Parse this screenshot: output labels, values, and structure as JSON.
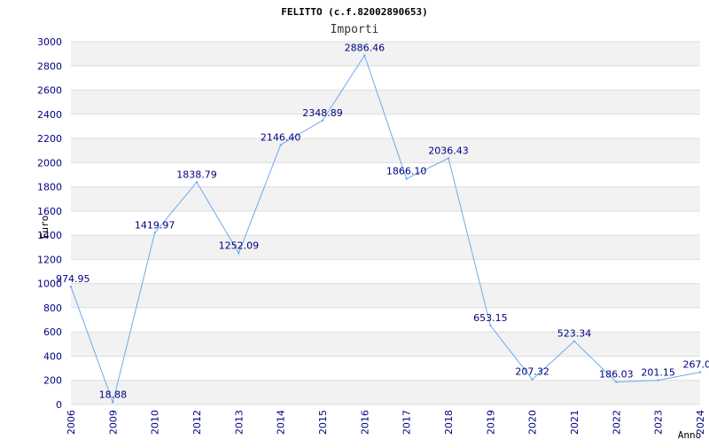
{
  "chart_data": {
    "type": "line",
    "title": "FELITTO (c.f.82002890653)",
    "subtitle": "Importi",
    "xlabel": "Anno",
    "ylabel": "Euro",
    "categories": [
      "2006",
      "2009",
      "2010",
      "2012",
      "2013",
      "2014",
      "2015",
      "2016",
      "2017",
      "2018",
      "2019",
      "2020",
      "2021",
      "2022",
      "2023",
      "2024"
    ],
    "series": [
      {
        "values": [
          974.95,
          18.88,
          1419.97,
          1838.79,
          1252.09,
          2146.4,
          2348.89,
          2886.46,
          1866.1,
          2036.43,
          653.15,
          207.32,
          523.34,
          186.03,
          201.15,
          267.0
        ],
        "labels": [
          "974.95",
          "18.88",
          "1419.97",
          "1838.79",
          "1252.09",
          "2146.40",
          "2348.89",
          "2886.46",
          "1866.10",
          "2036.43",
          "653.15",
          "207.32",
          "523.34",
          "186.03",
          "201.15",
          "267.0"
        ],
        "color": "#6aaaee"
      }
    ],
    "ylim": [
      0,
      3000
    ],
    "yticks": [
      0,
      200,
      400,
      600,
      800,
      1000,
      1200,
      1400,
      1600,
      1800,
      2000,
      2200,
      2400,
      2600,
      2800,
      3000
    ],
    "grid": "horizontal-bands",
    "colors": {
      "band": "#f2f2f2",
      "line": "#6aaaee",
      "tick_text": "#000080",
      "gridline": "#dddddd"
    }
  }
}
